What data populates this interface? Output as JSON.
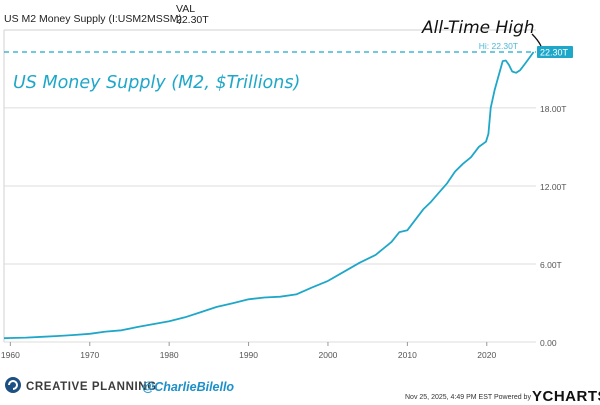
{
  "header": {
    "series_name": "US M2 Money Supply (I:USM2MSSM)",
    "val_label": "VAL",
    "val_value": "22.30T"
  },
  "chart_data": {
    "type": "line",
    "title": "US Money Supply (M2, $Trillions)",
    "annotation": "All-Time High",
    "high_label": "Hi: 22.30T",
    "last_value_label": "22.30T",
    "x_tick_labels": [
      "1960",
      "1970",
      "1980",
      "1990",
      "2000",
      "2010",
      "2020"
    ],
    "x_ticks": [
      1960,
      1970,
      1980,
      1990,
      2000,
      2010,
      2020
    ],
    "y_tick_labels": [
      "0.00",
      "6.00T",
      "12.00T",
      "18.00T"
    ],
    "y_ticks": [
      0,
      6,
      12,
      18
    ],
    "xlim": [
      1959.2,
      2026.2
    ],
    "ylim": [
      0,
      22.3
    ],
    "series": [
      {
        "name": "US M2 Money Supply",
        "color": "#1ea7c9",
        "points": [
          [
            1959.2,
            0.29
          ],
          [
            1960,
            0.31
          ],
          [
            1962,
            0.34
          ],
          [
            1964,
            0.4
          ],
          [
            1966,
            0.46
          ],
          [
            1968,
            0.54
          ],
          [
            1970,
            0.63
          ],
          [
            1972,
            0.8
          ],
          [
            1974,
            0.9
          ],
          [
            1976,
            1.15
          ],
          [
            1978,
            1.38
          ],
          [
            1980,
            1.6
          ],
          [
            1982,
            1.9
          ],
          [
            1984,
            2.3
          ],
          [
            1986,
            2.7
          ],
          [
            1988,
            2.98
          ],
          [
            1990,
            3.28
          ],
          [
            1992,
            3.42
          ],
          [
            1994,
            3.48
          ],
          [
            1996,
            3.66
          ],
          [
            1998,
            4.2
          ],
          [
            2000,
            4.7
          ],
          [
            2002,
            5.4
          ],
          [
            2004,
            6.1
          ],
          [
            2006,
            6.7
          ],
          [
            2008,
            7.7
          ],
          [
            2009,
            8.45
          ],
          [
            2010,
            8.6
          ],
          [
            2011,
            9.4
          ],
          [
            2012,
            10.2
          ],
          [
            2013,
            10.8
          ],
          [
            2014,
            11.5
          ],
          [
            2015,
            12.2
          ],
          [
            2016,
            13.1
          ],
          [
            2017,
            13.7
          ],
          [
            2018,
            14.2
          ],
          [
            2019,
            15.0
          ],
          [
            2019.9,
            15.4
          ],
          [
            2020.2,
            16.0
          ],
          [
            2020.5,
            18.0
          ],
          [
            2021,
            19.4
          ],
          [
            2021.5,
            20.5
          ],
          [
            2022,
            21.6
          ],
          [
            2022.4,
            21.65
          ],
          [
            2022.8,
            21.3
          ],
          [
            2023.2,
            20.8
          ],
          [
            2023.7,
            20.7
          ],
          [
            2024.2,
            20.9
          ],
          [
            2024.7,
            21.3
          ],
          [
            2025.3,
            21.8
          ],
          [
            2025.9,
            22.3
          ]
        ]
      }
    ]
  },
  "footer": {
    "brand": "CREATIVE PLANNING",
    "handle": "@CharlieBilello",
    "meta": "Nov 25, 2025, 4:49 PM EST Powered by",
    "ycharts": "YCHARTS"
  }
}
